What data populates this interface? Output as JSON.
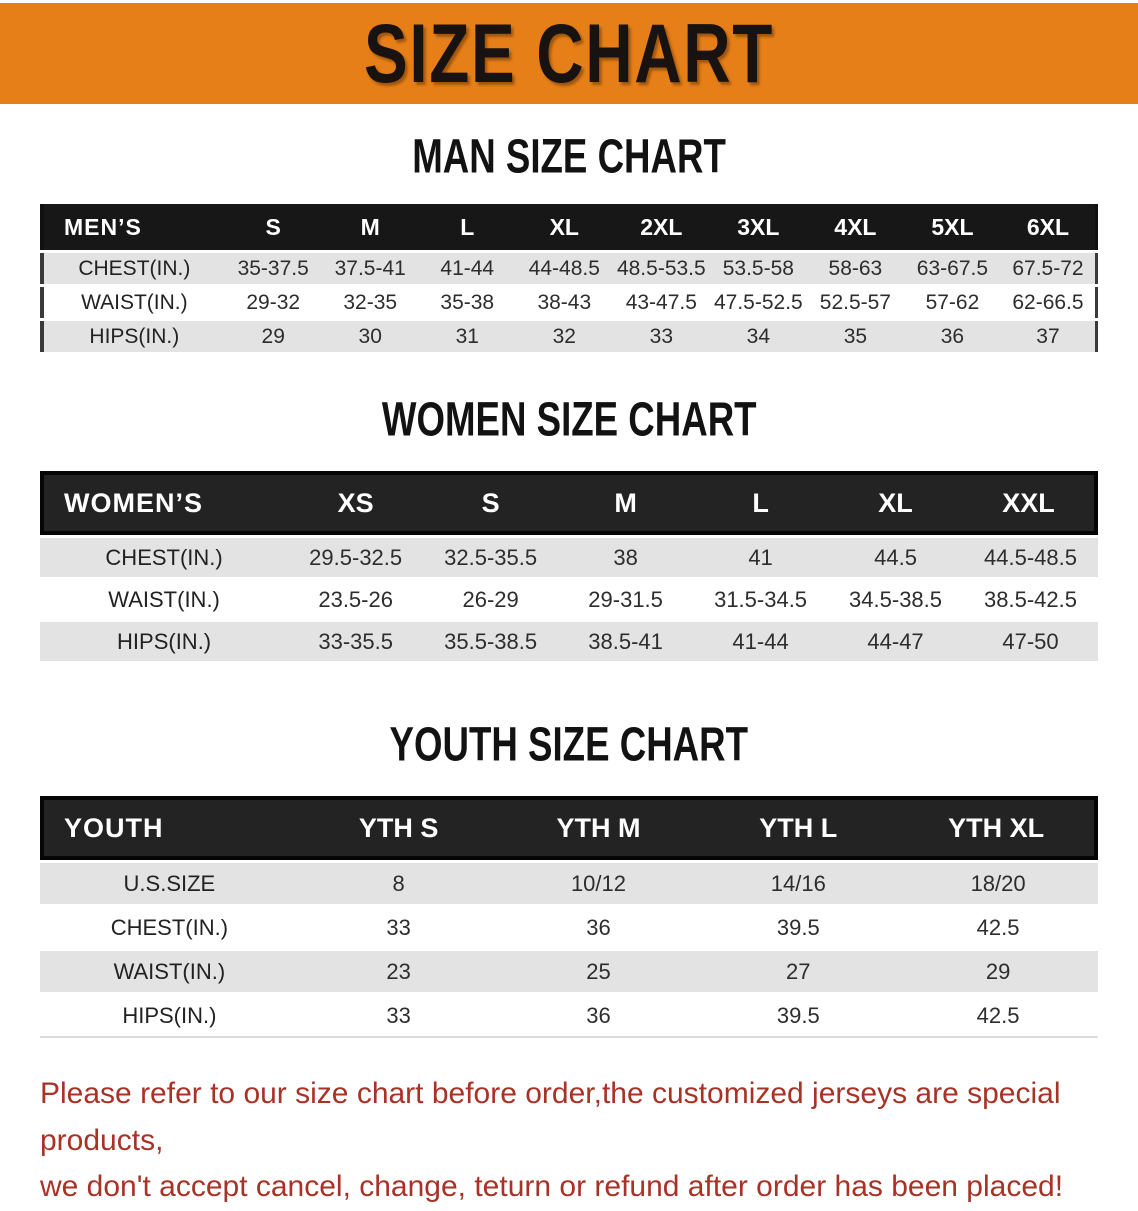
{
  "banner": {
    "title": "SIZE CHART",
    "bg_color": "#E77F18",
    "text_color": "#181210"
  },
  "colors": {
    "header_bar": "#171717",
    "row_shaded": "#E3E3E3",
    "row_plain": "#FFFFFF",
    "note_red": "#A93226"
  },
  "sections": [
    {
      "heading": "MAN SIZE CHART",
      "table": {
        "header": [
          "MEN’S",
          "S",
          "M",
          "L",
          "XL",
          "2XL",
          "3XL",
          "4XL",
          "5XL",
          "6XL"
        ],
        "rows": [
          {
            "label": "CHEST(IN.)",
            "values": [
              "35-37.5",
              "37.5-41",
              "41-44",
              "44-48.5",
              "48.5-53.5",
              "53.5-58",
              "58-63",
              "63-67.5",
              "67.5-72"
            ]
          },
          {
            "label": "WAIST(IN.)",
            "values": [
              "29-32",
              "32-35",
              "35-38",
              "38-43",
              "43-47.5",
              "47.5-52.5",
              "52.5-57",
              "57-62",
              "62-66.5"
            ]
          },
          {
            "label": "HIPS(IN.)",
            "values": [
              "29",
              "30",
              "31",
              "32",
              "33",
              "34",
              "35",
              "36",
              "37"
            ]
          }
        ]
      }
    },
    {
      "heading": "WOMEN SIZE CHART",
      "table": {
        "header": [
          "WOMEN’S",
          "XS",
          "S",
          "M",
          "L",
          "XL",
          "XXL"
        ],
        "rows": [
          {
            "label": "CHEST(IN.)",
            "values": [
              "29.5-32.5",
              "32.5-35.5",
              "38",
              "41",
              "44.5",
              "44.5-48.5"
            ]
          },
          {
            "label": "WAIST(IN.)",
            "values": [
              "23.5-26",
              "26-29",
              "29-31.5",
              "31.5-34.5",
              "34.5-38.5",
              "38.5-42.5"
            ]
          },
          {
            "label": "HIPS(IN.)",
            "values": [
              "33-35.5",
              "35.5-38.5",
              "38.5-41",
              "41-44",
              "44-47",
              "47-50"
            ]
          }
        ]
      }
    },
    {
      "heading": "YOUTH SIZE CHART",
      "table": {
        "header": [
          "YOUTH",
          "YTH S",
          "YTH M",
          "YTH L",
          "YTH XL"
        ],
        "rows": [
          {
            "label": "U.S.SIZE",
            "values": [
              "8",
              "10/12",
              "14/16",
              "18/20"
            ]
          },
          {
            "label": "CHEST(IN.)",
            "values": [
              "33",
              "36",
              "39.5",
              "42.5"
            ]
          },
          {
            "label": "WAIST(IN.)",
            "values": [
              "23",
              "25",
              "27",
              "29"
            ]
          },
          {
            "label": "HIPS(IN.)",
            "values": [
              "33",
              "36",
              "39.5",
              "42.5"
            ]
          }
        ]
      }
    }
  ],
  "note": {
    "lines": [
      "Please refer to our size chart before order,the customized jerseys are special products,",
      "we don't accept cancel, change, teturn or refund after order has been placed!"
    ]
  }
}
